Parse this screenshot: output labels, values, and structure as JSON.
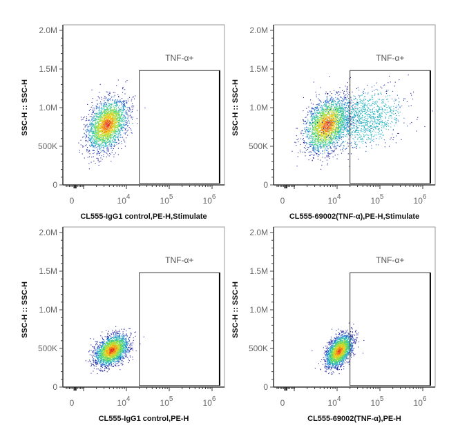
{
  "chart_data": [
    {
      "type": "scatter",
      "xlabel": "CL555-IgG1 control,PE-H,Stimulate",
      "ylabel": "SSC-H :: SSC-H",
      "gate": {
        "label": "TNF-α+",
        "x": [
          20000,
          1500000
        ],
        "y": [
          20000,
          1480000
        ]
      },
      "population": [
        {
          "x_center": 3500,
          "x_sd_decades": 0.22,
          "y_center": 780000,
          "y_sd": 160000,
          "n": 2600
        }
      ]
    },
    {
      "type": "scatter",
      "xlabel": "CL555-69002(TNF-α),PE-H,Stimulate",
      "ylabel": "SSC-H :: SSC-H",
      "gate": {
        "label": "TNF-α+",
        "x": [
          20000,
          1500000
        ],
        "y": [
          20000,
          1480000
        ]
      },
      "population": [
        {
          "x_center": 5800,
          "x_sd_decades": 0.25,
          "y_center": 780000,
          "y_sd": 170000,
          "n": 2600
        },
        {
          "x_center": 40000,
          "x_sd_decades": 0.45,
          "y_center": 850000,
          "y_sd": 180000,
          "n": 1200
        }
      ]
    },
    {
      "type": "scatter",
      "xlabel": "CL555-IgG1 control,PE-H",
      "ylabel": "SSC-H :: SSC-H",
      "gate": {
        "label": "TNF-α+",
        "x": [
          20000,
          1500000
        ],
        "y": [
          20000,
          1480000
        ]
      },
      "population": [
        {
          "x_center": 4500,
          "x_sd_decades": 0.18,
          "y_center": 480000,
          "y_sd": 95000,
          "n": 2600
        }
      ]
    },
    {
      "type": "scatter",
      "xlabel": "CL555-69002(TNF-α),PE-H",
      "ylabel": "SSC-H :: SSC-H",
      "gate": {
        "label": "TNF-α+",
        "x": [
          20000,
          1500000
        ],
        "y": [
          20000,
          1480000
        ]
      },
      "population": [
        {
          "x_center": 11000,
          "x_sd_decades": 0.14,
          "y_center": 470000,
          "y_sd": 100000,
          "n": 2600
        }
      ]
    }
  ],
  "axes": {
    "ylim": [
      0,
      2000000
    ],
    "yticks": [
      {
        "v": 0,
        "label": "0"
      },
      {
        "v": 500000,
        "label": "500K"
      },
      {
        "v": 1000000,
        "label": "1.0M"
      },
      {
        "v": 1500000,
        "label": "1.5M"
      },
      {
        "v": 2000000,
        "label": "2.0M"
      }
    ],
    "xscale": "biexponential",
    "xticks": [
      {
        "exp": null,
        "label": "0"
      },
      {
        "exp": 4,
        "base": "10",
        "sup": "4"
      },
      {
        "exp": 5,
        "base": "10",
        "sup": "5"
      },
      {
        "exp": 6,
        "base": "10",
        "sup": "6"
      }
    ]
  },
  "colormap": [
    "#1a1aa0",
    "#1f5fd0",
    "#20b0c0",
    "#40d080",
    "#a0e040",
    "#f0d020",
    "#f08020",
    "#e02020"
  ]
}
